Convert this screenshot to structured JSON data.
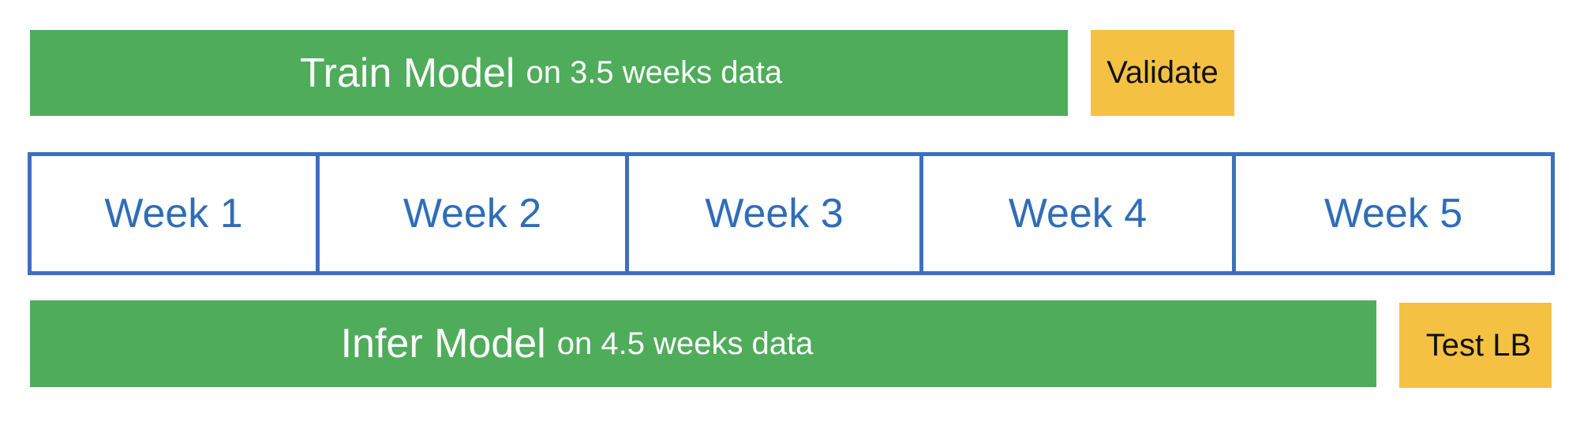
{
  "train": {
    "title": "Train Model",
    "detail": "on 3.5 weeks data"
  },
  "validate": {
    "label": "Validate"
  },
  "weeks": [
    "Week 1",
    "Week 2",
    "Week 3",
    "Week 4",
    "Week 5"
  ],
  "infer": {
    "title": "Infer Model",
    "detail": "on 4.5 weeks data"
  },
  "test": {
    "label": "Test LB"
  },
  "colors": {
    "green": "#4fac5b",
    "orange": "#f5c142",
    "blue_border": "#3d6fc0",
    "blue_text": "#2f6db7"
  }
}
